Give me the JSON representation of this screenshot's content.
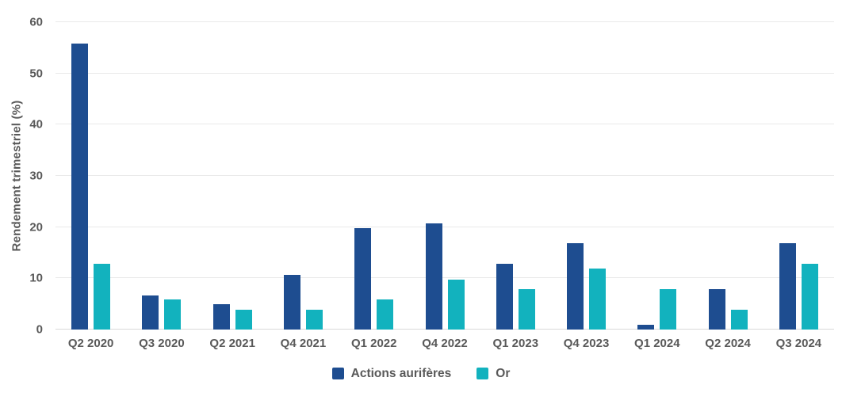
{
  "chart_data": {
    "type": "bar",
    "title": "",
    "xlabel": "",
    "ylabel": "Rendement trimestriel (%)",
    "ylim": [
      0,
      60
    ],
    "ytick_step": 10,
    "yticks": [
      0,
      10,
      20,
      30,
      40,
      50,
      60
    ],
    "grid": true,
    "legend_position": "bottom",
    "categories": [
      "Q2 2020",
      "Q3 2020",
      "Q2 2021",
      "Q4 2021",
      "Q1 2022",
      "Q4 2022",
      "Q1 2023",
      "Q4 2023",
      "Q1 2024",
      "Q2 2024",
      "Q3 2024"
    ],
    "series": [
      {
        "name": "Actions aurifères",
        "color": "#1E4D90",
        "values": [
          55.9,
          6.7,
          4.9,
          10.7,
          19.8,
          20.8,
          12.9,
          16.9,
          0.9,
          7.9,
          16.9
        ]
      },
      {
        "name": "Or",
        "color": "#12B2BE",
        "values": [
          12.9,
          5.9,
          3.9,
          3.9,
          5.9,
          9.8,
          7.9,
          11.9,
          7.9,
          3.9,
          12.9
        ]
      }
    ]
  },
  "styles": {
    "text_color": "#595959",
    "gridline_color": "#E9E9E9",
    "baseline_color": "#D9D9D9",
    "background": "#FFFFFF"
  }
}
